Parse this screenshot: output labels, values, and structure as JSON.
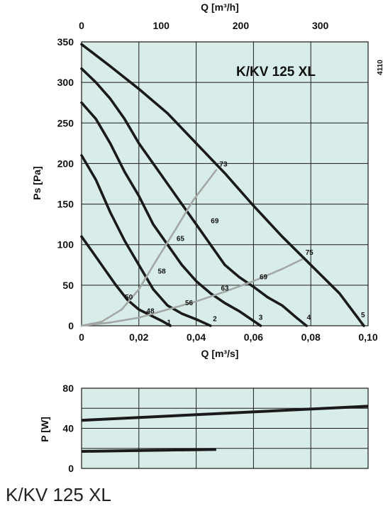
{
  "document_code": "4110",
  "footer_title": "K/KV 125 XL",
  "chart_data": [
    {
      "type": "line",
      "title": "K/KV 125 XL",
      "xlabel": "Q [m³/s]",
      "x2label": "Q [m³/h]",
      "ylabel": "Ps [Pa]",
      "xlim": [
        0,
        0.1
      ],
      "x2lim": [
        0,
        360
      ],
      "ylim": [
        0,
        350
      ],
      "x_ticks": [
        "0",
        "0,02",
        "0,04",
        "0,06",
        "0,08",
        "0,10"
      ],
      "x_tick_values": [
        0,
        0.02,
        0.04,
        0.06,
        0.08,
        0.1
      ],
      "x2_ticks": [
        "0",
        "100",
        "200",
        "300"
      ],
      "x2_tick_values": [
        0,
        100,
        200,
        300
      ],
      "y_ticks": [
        "0",
        "50",
        "100",
        "150",
        "200",
        "250",
        "300",
        "350"
      ],
      "y_tick_values": [
        0,
        50,
        100,
        150,
        200,
        250,
        300,
        350
      ],
      "grid": true,
      "series": [
        {
          "name": "1",
          "color": "#1a1a1a",
          "x": [
            0,
            0.004,
            0.008,
            0.012,
            0.016,
            0.02,
            0.024,
            0.028,
            0.031
          ],
          "y": [
            110,
            90,
            70,
            50,
            32,
            20,
            13,
            6,
            0
          ]
        },
        {
          "name": "2",
          "color": "#1a1a1a",
          "x": [
            0,
            0.005,
            0.01,
            0.015,
            0.02,
            0.025,
            0.03,
            0.035,
            0.04,
            0.045
          ],
          "y": [
            210,
            180,
            140,
            105,
            75,
            45,
            25,
            15,
            8,
            0
          ]
        },
        {
          "name": "3",
          "color": "#1a1a1a",
          "x": [
            0,
            0.005,
            0.01,
            0.015,
            0.02,
            0.025,
            0.03,
            0.035,
            0.04,
            0.045,
            0.05,
            0.055,
            0.06,
            0.0625
          ],
          "y": [
            275,
            255,
            225,
            190,
            160,
            125,
            100,
            75,
            55,
            40,
            28,
            18,
            6,
            0
          ]
        },
        {
          "name": "4",
          "color": "#1a1a1a",
          "x": [
            0,
            0.005,
            0.01,
            0.015,
            0.02,
            0.025,
            0.03,
            0.035,
            0.04,
            0.045,
            0.05,
            0.055,
            0.06,
            0.065,
            0.07,
            0.075,
            0.0785
          ],
          "y": [
            317,
            300,
            280,
            255,
            225,
            200,
            175,
            150,
            125,
            100,
            75,
            60,
            48,
            35,
            25,
            10,
            0
          ]
        },
        {
          "name": "5",
          "color": "#1a1a1a",
          "x": [
            0,
            0.01,
            0.02,
            0.03,
            0.04,
            0.05,
            0.06,
            0.07,
            0.08,
            0.09,
            0.0985
          ],
          "y": [
            347,
            320,
            292,
            262,
            225,
            188,
            148,
            110,
            75,
            40,
            0
          ]
        },
        {
          "name": "73",
          "color": "#a3a8a6",
          "x": [
            0,
            0.007,
            0.014,
            0.02,
            0.026,
            0.033,
            0.039,
            0.047
          ],
          "y": [
            0,
            5,
            20,
            45,
            80,
            120,
            155,
            192
          ]
        },
        {
          "name": "75",
          "color": "#a3a8a6",
          "x": [
            0,
            0.01,
            0.02,
            0.03,
            0.04,
            0.05,
            0.06,
            0.07,
            0.077
          ],
          "y": [
            0,
            4,
            10,
            20,
            30,
            42,
            55,
            70,
            82
          ]
        }
      ],
      "annotations": [
        {
          "text": "73",
          "x": 0.0495,
          "y": 200
        },
        {
          "text": "69",
          "x": 0.0465,
          "y": 130
        },
        {
          "text": "65",
          "x": 0.0345,
          "y": 108
        },
        {
          "text": "58",
          "x": 0.028,
          "y": 68
        },
        {
          "text": "50",
          "x": 0.0165,
          "y": 36
        },
        {
          "text": "48",
          "x": 0.024,
          "y": 19
        },
        {
          "text": "56",
          "x": 0.0375,
          "y": 29
        },
        {
          "text": "63",
          "x": 0.05,
          "y": 47
        },
        {
          "text": "69",
          "x": 0.0635,
          "y": 61
        },
        {
          "text": "75",
          "x": 0.0795,
          "y": 91
        },
        {
          "text": "1",
          "x": 0.0305,
          "y": 5
        },
        {
          "text": "2",
          "x": 0.0465,
          "y": 9
        },
        {
          "text": "3",
          "x": 0.0625,
          "y": 11
        },
        {
          "text": "4",
          "x": 0.0793,
          "y": 11
        },
        {
          "text": "5",
          "x": 0.0982,
          "y": 14
        }
      ]
    },
    {
      "type": "line",
      "title": "",
      "xlabel": "",
      "ylabel": "P [W]",
      "xlim": [
        0,
        0.1
      ],
      "ylim": [
        0,
        80
      ],
      "y_ticks": [
        "0",
        "40",
        "80"
      ],
      "y_tick_values": [
        0,
        40,
        80
      ],
      "x_tick_values": [
        0,
        0.02,
        0.04,
        0.06,
        0.08,
        0.1
      ],
      "grid": true,
      "series": [
        {
          "name": "",
          "color": "#1a1a1a",
          "x": [
            0,
            0.1
          ],
          "y": [
            48,
            62
          ]
        },
        {
          "name": "",
          "color": "#1a1a1a",
          "x": [
            0,
            0.047
          ],
          "y": [
            17,
            19
          ]
        }
      ]
    }
  ]
}
